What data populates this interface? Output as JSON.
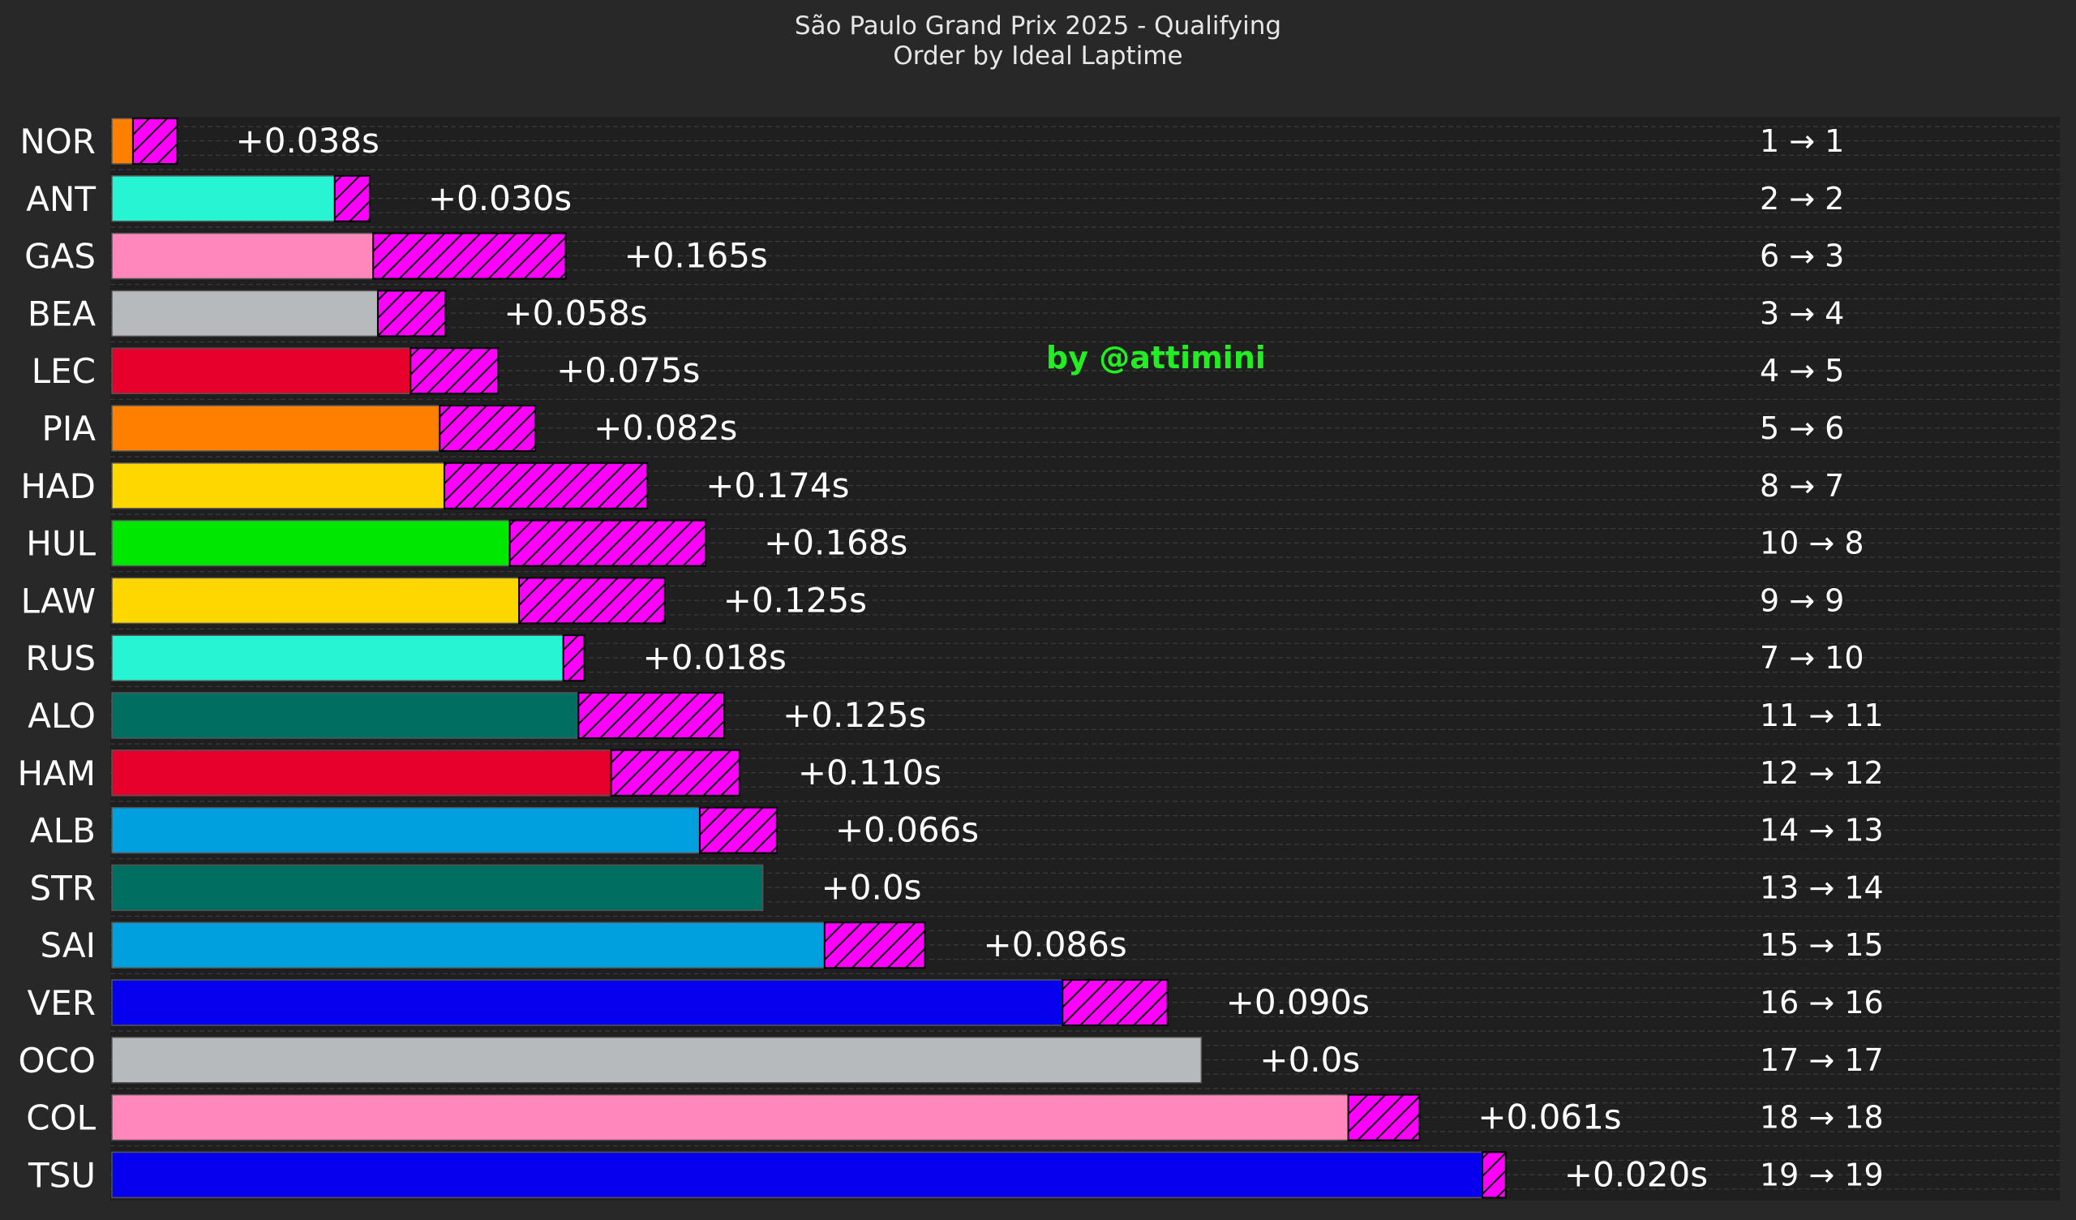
{
  "chart_data": {
    "type": "bar",
    "orientation": "horizontal",
    "stacked": true,
    "title": "São Paulo Grand Prix 2025 - Qualifying",
    "subtitle": "Order by Ideal Laptime",
    "watermark": "by @attimini",
    "grid": true,
    "xlabel": "",
    "ylabel": "",
    "colors": {
      "background": "#282828",
      "plot_background": "#1f1f1f",
      "gap_fill": "#ff00ff",
      "watermark": "#22ee22",
      "text": "#ffffff"
    },
    "categories": [
      "NOR",
      "ANT",
      "GAS",
      "BEA",
      "LEC",
      "PIA",
      "HAD",
      "HUL",
      "LAW",
      "RUS",
      "ALO",
      "HAM",
      "ALB",
      "STR",
      "SAI",
      "VER",
      "OCO",
      "COL",
      "TSU"
    ],
    "team_colors": [
      "#ff8000",
      "#27f4d2",
      "#ff87bc",
      "#b6babd",
      "#e8002d",
      "#ff8000",
      "#fed700",
      "#00e701",
      "#fed700",
      "#27f4d2",
      "#006f62",
      "#e8002d",
      "#00a0de",
      "#006f62",
      "#00a0de",
      "#0600ef",
      "#b6babd",
      "#ff87bc",
      "#0600ef"
    ],
    "series": [
      {
        "name": "ideal_gap",
        "values": [
          0.018,
          0.191,
          0.224,
          0.228,
          0.256,
          0.281,
          0.285,
          0.341,
          0.349,
          0.387,
          0.4,
          0.428,
          0.504,
          0.558,
          0.611,
          0.815,
          0.934,
          1.06,
          1.175
        ]
      },
      {
        "name": "lost_time",
        "values": [
          0.038,
          0.03,
          0.165,
          0.058,
          0.075,
          0.082,
          0.174,
          0.168,
          0.125,
          0.018,
          0.125,
          0.11,
          0.066,
          0.0,
          0.086,
          0.09,
          0.0,
          0.061,
          0.02
        ]
      }
    ],
    "data_labels": [
      "+0.038s",
      "+0.030s",
      "+0.165s",
      "+0.058s",
      "+0.075s",
      "+0.082s",
      "+0.174s",
      "+0.168s",
      "+0.125s",
      "+0.018s",
      "+0.125s",
      "+0.110s",
      "+0.066s",
      "+0.0s",
      "+0.086s",
      "+0.090s",
      "+0.0s",
      "+0.061s",
      "+0.020s"
    ],
    "position_changes": [
      "1 → 1",
      "2 → 2",
      "6 → 3",
      "3 → 4",
      "4 → 5",
      "5 → 6",
      "8 → 7",
      "10 → 8",
      "9 → 9",
      "7 → 10",
      "11 → 11",
      "12 → 12",
      "14 → 13",
      "13 → 14",
      "15 → 15",
      "16 → 16",
      "17 → 17",
      "18 → 18",
      "19 → 19"
    ],
    "xlim": [
      0,
      1.67
    ]
  }
}
